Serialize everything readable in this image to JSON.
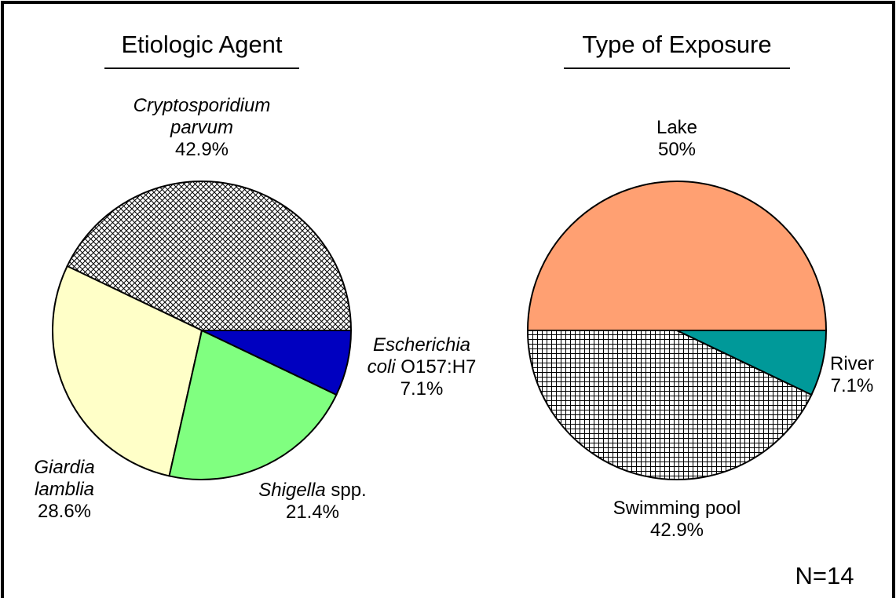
{
  "chart_data": [
    {
      "type": "pie",
      "title": "Etiologic Agent",
      "categories": [
        [
          [
            {
              "text": "Cryptosporidium",
              "italic": true
            }
          ],
          [
            {
              "text": "parvum",
              "italic": true
            }
          ]
        ],
        [
          [
            {
              "text": "Giardia",
              "italic": true
            }
          ],
          [
            {
              "text": "lamblia",
              "italic": true
            }
          ]
        ],
        [
          [
            {
              "text": "Shigella",
              "italic": true
            },
            {
              "text": " spp.",
              "italic": false
            }
          ]
        ],
        [
          [
            {
              "text": "Escherichia",
              "italic": true
            }
          ],
          [
            {
              "text": "coli",
              "italic": true
            },
            {
              "text": " O157:H7",
              "italic": false
            }
          ]
        ]
      ],
      "values": [
        42.9,
        28.6,
        21.4,
        7.1
      ],
      "value_labels": [
        "42.9%",
        "28.6%",
        "21.4%",
        "7.1%"
      ],
      "colors": [
        "#e0409a",
        "#ffffc8",
        "#80ff80",
        "#0000c0"
      ],
      "hatch": [
        "crosshatch",
        "none",
        "none",
        "none"
      ]
    },
    {
      "type": "pie",
      "title": "Type of Exposure",
      "categories": [
        [
          [
            {
              "text": "Lake",
              "italic": false
            }
          ]
        ],
        [
          [
            {
              "text": "Swimming pool",
              "italic": false
            }
          ]
        ],
        [
          [
            {
              "text": "River",
              "italic": false
            }
          ]
        ]
      ],
      "values": [
        50,
        42.9,
        7.1
      ],
      "value_labels": [
        "50%",
        "42.9%",
        "7.1%"
      ],
      "colors": [
        "#ffa072",
        "#800090",
        "#009999"
      ],
      "hatch": [
        "none",
        "grid",
        "none"
      ],
      "annotation": "N=14"
    }
  ]
}
